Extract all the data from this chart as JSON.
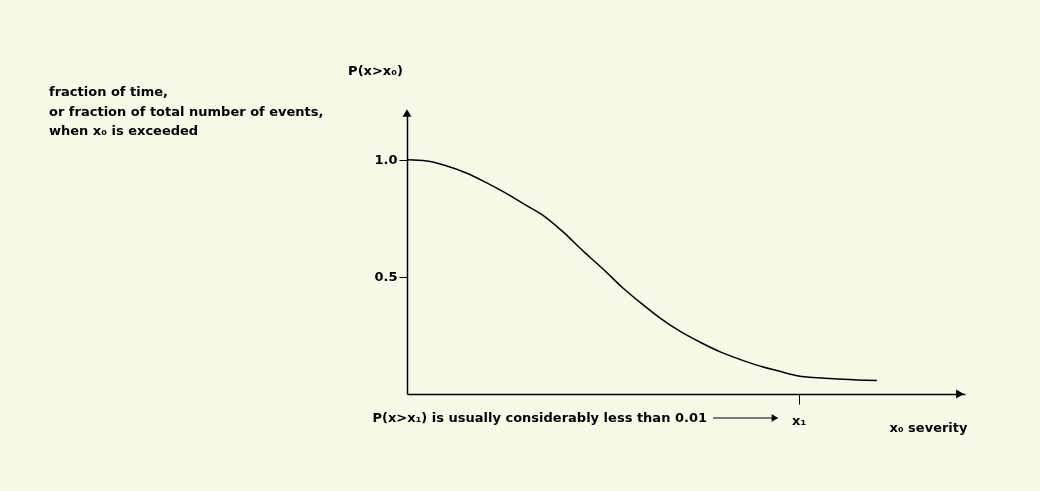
{
  "chart_data": {
    "type": "line",
    "categories": [
      null,
      null,
      null,
      null,
      null,
      null,
      null,
      null,
      null,
      null,
      null,
      null,
      null,
      null,
      null,
      null,
      null,
      null,
      null,
      null,
      "x₁",
      null,
      null,
      null,
      null
    ],
    "values": [
      1.0,
      0.995,
      0.975,
      0.945,
      0.905,
      0.86,
      0.81,
      0.76,
      0.69,
      0.61,
      0.535,
      0.455,
      0.385,
      0.32,
      0.265,
      0.22,
      0.18,
      0.148,
      0.12,
      0.098,
      0.077,
      0.069,
      0.064,
      0.06,
      0.058
    ],
    "color": "#000000",
    "ylabel": "P(x>x₀)",
    "xlabel": "x₀  severity",
    "ylim": [
      0,
      1.2
    ],
    "yticks": [
      0.5,
      {
        "value": 1,
        "label": "1.0"
      }
    ],
    "annotations": [
      "fraction of time,\nor fraction of total number of events,\nwhen x₀ is exceeded",
      "P(x>x₁) is usually considerably less than 0.01"
    ]
  }
}
